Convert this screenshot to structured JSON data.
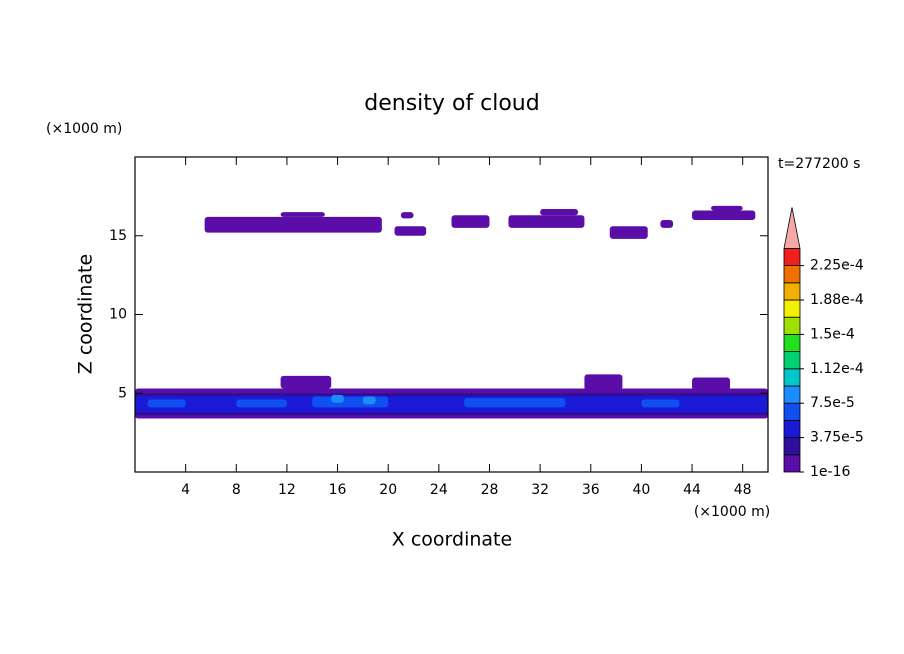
{
  "chart_data": {
    "type": "contour",
    "title": "density of cloud",
    "x_label": "X coordinate",
    "y_label": "Z coordinate",
    "x_unit": "(×1000 m)",
    "y_unit": "(×1000 m)",
    "annotation": "t=277200 s",
    "xlim": [
      0,
      50
    ],
    "ylim": [
      0,
      20
    ],
    "xticks": [
      4,
      8,
      12,
      16,
      20,
      24,
      28,
      32,
      36,
      40,
      44,
      48
    ],
    "yticks": [
      5,
      10,
      15
    ],
    "colorbar": {
      "levels": [
        1e-16,
        1.875e-05,
        3.75e-05,
        5.625e-05,
        7.5e-05,
        9.375e-05,
        0.0001125,
        0.00013125,
        0.00015,
        0.00016875,
        0.0001875,
        0.00020625,
        0.000225
      ],
      "colors": [
        "#5b0da8",
        "#2d0f9c",
        "#1a1ad8",
        "#1050f0",
        "#1a8cff",
        "#00c8c8",
        "#00d070",
        "#20e020",
        "#a0e000",
        "#f0f000",
        "#f0b000",
        "#f07000",
        "#f02020"
      ],
      "over_color": "#f4a8a8",
      "ticks": [
        {
          "value": 1e-16,
          "label": "1e-16"
        },
        {
          "value": 3.75e-05,
          "label": "3.75e-5"
        },
        {
          "value": 7.5e-05,
          "label": "7.5e-5"
        },
        {
          "value": 0.0001125,
          "label": "1.12e-4"
        },
        {
          "value": 0.00015,
          "label": "1.5e-4"
        },
        {
          "value": 0.0001875,
          "label": "1.88e-4"
        },
        {
          "value": 0.000225,
          "label": "2.25e-4"
        }
      ]
    },
    "regions": [
      {
        "x": [
          5.5,
          19.5
        ],
        "z": [
          15.2,
          16.2
        ],
        "level": 1e-16
      },
      {
        "x": [
          11.5,
          15
        ],
        "z": [
          16.2,
          16.5
        ],
        "level": 1e-16
      },
      {
        "x": [
          20.5,
          23
        ],
        "z": [
          15.0,
          15.6
        ],
        "level": 1e-16
      },
      {
        "x": [
          21,
          22
        ],
        "z": [
          16.1,
          16.5
        ],
        "level": 1e-16
      },
      {
        "x": [
          25,
          28
        ],
        "z": [
          15.5,
          16.3
        ],
        "level": 1e-16
      },
      {
        "x": [
          29.5,
          35.5
        ],
        "z": [
          15.5,
          16.3
        ],
        "level": 1e-16
      },
      {
        "x": [
          32,
          35
        ],
        "z": [
          16.3,
          16.7
        ],
        "level": 1e-16
      },
      {
        "x": [
          37.5,
          40.5
        ],
        "z": [
          14.8,
          15.6
        ],
        "level": 1e-16
      },
      {
        "x": [
          41.5,
          42.5
        ],
        "z": [
          15.5,
          16.0
        ],
        "level": 1e-16
      },
      {
        "x": [
          44,
          49
        ],
        "z": [
          16.0,
          16.6
        ],
        "level": 1e-16
      },
      {
        "x": [
          45.5,
          48
        ],
        "z": [
          16.6,
          16.9
        ],
        "level": 1e-16
      },
      {
        "x": [
          0,
          50
        ],
        "z": [
          3.4,
          5.3
        ],
        "level": 1e-16
      },
      {
        "x": [
          11.5,
          15.5
        ],
        "z": [
          5.3,
          6.1
        ],
        "level": 1e-16
      },
      {
        "x": [
          35.5,
          38.5
        ],
        "z": [
          5.2,
          6.2
        ],
        "level": 1e-16
      },
      {
        "x": [
          44,
          47
        ],
        "z": [
          5.2,
          6.0
        ],
        "level": 1e-16
      },
      {
        "x": [
          0,
          50
        ],
        "z": [
          3.6,
          5.0
        ],
        "level": 1.875e-05
      },
      {
        "x": [
          0,
          50
        ],
        "z": [
          3.8,
          4.8
        ],
        "level": 3.75e-05
      },
      {
        "x": [
          1,
          4
        ],
        "z": [
          4.1,
          4.6
        ],
        "level": 5.625e-05
      },
      {
        "x": [
          8,
          12
        ],
        "z": [
          4.1,
          4.6
        ],
        "level": 5.625e-05
      },
      {
        "x": [
          14,
          20
        ],
        "z": [
          4.1,
          4.8
        ],
        "level": 5.625e-05
      },
      {
        "x": [
          26,
          34
        ],
        "z": [
          4.1,
          4.7
        ],
        "level": 5.625e-05
      },
      {
        "x": [
          40,
          43
        ],
        "z": [
          4.1,
          4.6
        ],
        "level": 5.625e-05
      },
      {
        "x": [
          15.5,
          16.5
        ],
        "z": [
          4.4,
          4.9
        ],
        "level": 7.5e-05
      },
      {
        "x": [
          18,
          19
        ],
        "z": [
          4.3,
          4.8
        ],
        "level": 7.5e-05
      }
    ]
  }
}
